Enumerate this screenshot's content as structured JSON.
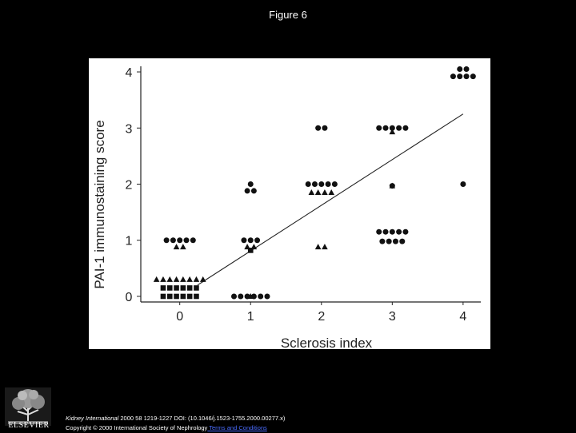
{
  "page": {
    "title": "Figure 6"
  },
  "chart_data": {
    "type": "scatter",
    "xlabel": "Sclerosis index",
    "ylabel": "PAI-1 immunostaining score",
    "x_ticks": [
      "0",
      "1",
      "2",
      "3",
      "4"
    ],
    "y_ticks": [
      "0",
      "1",
      "2",
      "3",
      "4"
    ],
    "xlim": [
      -0.55,
      4.25
    ],
    "ylim": [
      -0.1,
      4.1
    ],
    "grid": false,
    "legend": "none",
    "series": [
      {
        "marker": "circle",
        "points": [
          [
            0,
            1,
            5
          ],
          [
            1,
            1,
            3
          ],
          [
            1,
            2,
            1
          ],
          [
            1,
            1.88,
            2
          ],
          [
            1,
            0,
            6
          ],
          [
            2,
            3,
            2
          ],
          [
            2,
            2,
            5
          ],
          [
            3,
            3,
            5
          ],
          [
            3,
            1.97,
            1
          ],
          [
            3,
            1.15,
            5
          ],
          [
            3,
            0.98,
            4
          ],
          [
            4,
            4.05,
            2
          ],
          [
            4,
            3.92,
            4
          ],
          [
            4,
            2,
            1
          ]
        ]
      },
      {
        "marker": "triangle",
        "points": [
          [
            0,
            0.88,
            2
          ],
          [
            0,
            0.3,
            8
          ],
          [
            1,
            0,
            1
          ],
          [
            1,
            0.88,
            2
          ],
          [
            2,
            1.85,
            4
          ],
          [
            2,
            0.88,
            2
          ],
          [
            3,
            2.93,
            1
          ],
          [
            3,
            1.97,
            1
          ]
        ]
      },
      {
        "marker": "square",
        "points": [
          [
            0,
            0.15,
            6
          ],
          [
            0,
            0,
            6
          ],
          [
            1,
            0.82,
            1
          ]
        ]
      }
    ],
    "regression_line": {
      "x": [
        0.25,
        4
      ],
      "y": [
        0.2,
        3.25
      ]
    }
  },
  "citation": {
    "journal": "Kidney International",
    "text": " 2000 58 1219-1227 DOI: (10.1046/j.1523-1755.2000.00277.x)",
    "copyright": "Copyright © 2000 International Society of Nephrology",
    "link_text": " Terms and Conditions"
  },
  "logo": {
    "text": "ELSEVIER"
  }
}
